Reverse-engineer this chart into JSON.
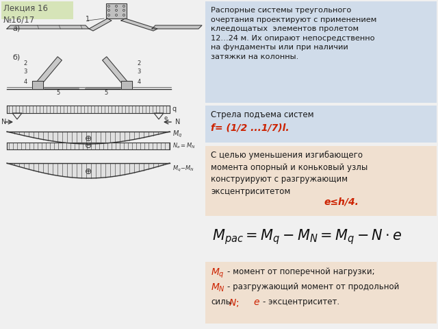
{
  "title_box_text": "Лекция 16\n№16/17",
  "title_box_bg": "#d6e4b8",
  "title_box_fg": "#4a4a4a",
  "main_bg": "#f0f0f0",
  "text_block1_bg": "#d0dcea",
  "text_block1_text": "Распорные системы треугольного\nочертания проектируют с применением\nклеедощатых  элементов пролетом\n12…24 м. Их опирают непосредственно\nна фундаменты или при наличии\nзатяжки на колонны.",
  "text_block2_bg": "#d0dcea",
  "text_block2_label": "Стрела подъема систем",
  "text_block2_formula": "f= (1/2 ...1/7)l.",
  "text_block3_bg": "#f0e0d0",
  "text_block3_text": "С целью уменьшения изгибающего\nмомента опорный и коньковый узлы\nконструируют с разгружающим\nэксцентриситетом",
  "text_block3_formula": "e≤h/4.",
  "text_block4_bg": "#f0e0d0",
  "text_block4_lines": [
    "- момент от поперечной нагрузки;",
    "- разгружающий момент от продольной",
    "силы",
    "- эксцентриситет."
  ],
  "red_color": "#cc2200",
  "dark_gray": "#333333",
  "mid_gray": "#888888",
  "light_gray": "#dddddd",
  "diagram_fill": "#d8d8d8"
}
